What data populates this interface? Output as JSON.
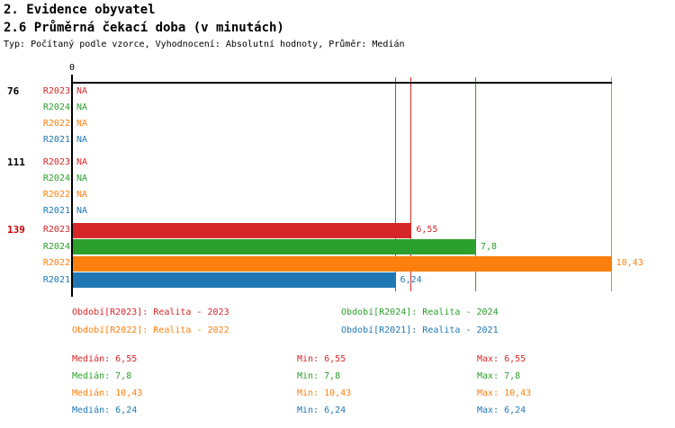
{
  "header": {
    "title1": "2. Evidence obyvatel",
    "title2": "2.6 Průměrná čekací doba (v minutách)",
    "subtitle": "Typ: Počítaný podle vzorce, Vyhodnocení: Absolutní hodnoty, Průměr: Medián"
  },
  "palette": {
    "R2023": "#d62728",
    "R2024": "#2ca02c",
    "R2022": "#ff7f0e",
    "R2021": "#1f77b4",
    "axis": "#000000",
    "group_label_default": "#000000",
    "group_label_highlight": "#cc0000"
  },
  "chart_data": {
    "type": "bar",
    "orientation": "horizontal",
    "title": "2.6 Průměrná čekací doba (v minutách)",
    "value_axis": {
      "origin_label": "0",
      "min": 0,
      "max": 10.43,
      "grid": false
    },
    "series_order": [
      "R2023",
      "R2024",
      "R2022",
      "R2021"
    ],
    "na_text": "NA",
    "groups": [
      {
        "label": "76",
        "highlight": false,
        "rows": [
          {
            "series": "R2023",
            "value": null,
            "display": "NA"
          },
          {
            "series": "R2024",
            "value": null,
            "display": "NA"
          },
          {
            "series": "R2022",
            "value": null,
            "display": "NA"
          },
          {
            "series": "R2021",
            "value": null,
            "display": "NA"
          }
        ]
      },
      {
        "label": "111",
        "highlight": false,
        "rows": [
          {
            "series": "R2023",
            "value": null,
            "display": "NA"
          },
          {
            "series": "R2024",
            "value": null,
            "display": "NA"
          },
          {
            "series": "R2022",
            "value": null,
            "display": "NA"
          },
          {
            "series": "R2021",
            "value": null,
            "display": "NA"
          }
        ]
      },
      {
        "label": "139",
        "highlight": true,
        "rows": [
          {
            "series": "R2023",
            "value": 6.55,
            "display": "6,55"
          },
          {
            "series": "R2024",
            "value": 7.8,
            "display": "7,8"
          },
          {
            "series": "R2022",
            "value": 10.43,
            "display": "10,43"
          },
          {
            "series": "R2021",
            "value": 6.24,
            "display": "6,24"
          }
        ]
      }
    ],
    "guide_lines": [
      {
        "series": "R2021",
        "value": 6.24
      },
      {
        "series": "R2023",
        "value": 6.55
      },
      {
        "series": "R2024",
        "value": 7.8
      },
      {
        "series": "R2022",
        "value": 10.43
      }
    ]
  },
  "legend": {
    "items": [
      {
        "series": "R2023",
        "text": "Období[R2023]: Realita - 2023"
      },
      {
        "series": "R2024",
        "text": "Období[R2024]: Realita - 2024"
      },
      {
        "series": "R2022",
        "text": "Období[R2022]: Realita - 2022"
      },
      {
        "series": "R2021",
        "text": "Období[R2021]: Realita - 2021"
      }
    ]
  },
  "stats": {
    "rows": [
      {
        "series": "R2023",
        "median": "Medián: 6,55",
        "min": "Min: 6,55",
        "max": "Max: 6,55"
      },
      {
        "series": "R2024",
        "median": "Medián: 7,8",
        "min": "Min: 7,8",
        "max": "Max: 7,8"
      },
      {
        "series": "R2022",
        "median": "Medián: 10,43",
        "min": "Min: 10,43",
        "max": "Max: 10,43"
      },
      {
        "series": "R2021",
        "median": "Medián: 6,24",
        "min": "Min: 6,24",
        "max": "Max: 6,24"
      }
    ]
  }
}
